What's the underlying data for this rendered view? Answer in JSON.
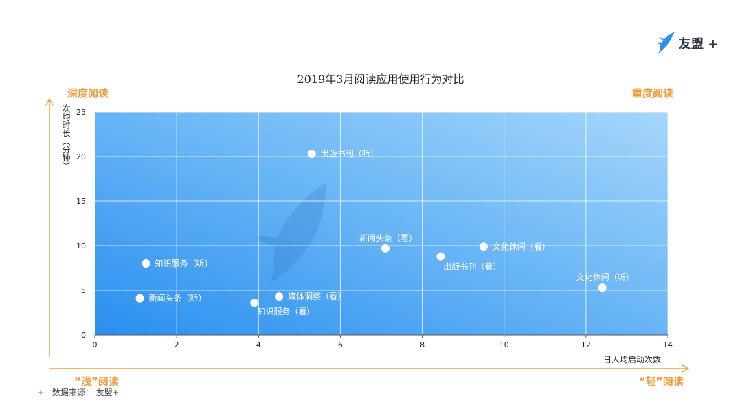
{
  "brand": {
    "name": "友盟",
    "plus": "+",
    "icon": "youmeng-bird-icon",
    "color": "#2d8ef0"
  },
  "title": "2019年3月阅读应用使用行为对比",
  "quadrants": {
    "top_left": "深度阅读",
    "top_right": "重度阅读",
    "bottom_left": "“浅”阅读",
    "bottom_right": "“轻”阅读"
  },
  "source": "数据来源： 友盟+",
  "colors": {
    "accent_orange": "#f39a3b",
    "plot_gradient_start": "#2a8ff0",
    "plot_gradient_end": "#9fd3fa",
    "point": "#ffffff"
  },
  "chart_data": {
    "type": "scatter",
    "title": "2019年3月阅读应用使用行为对比",
    "xlabel": "日人均启动次数",
    "ylabel": "次均时长（分钟）",
    "xlim": [
      0,
      14
    ],
    "ylim": [
      0,
      25
    ],
    "xticks": [
      0,
      2,
      4,
      6,
      8,
      10,
      12,
      14
    ],
    "yticks": [
      0,
      5,
      10,
      15,
      20,
      25
    ],
    "grid": true,
    "points": [
      {
        "label": "出版书刊（听）",
        "x": 5.3,
        "y": 20.3,
        "label_pos": "right"
      },
      {
        "label": "新闻头条（看）",
        "x": 7.1,
        "y": 9.7,
        "label_pos": "above"
      },
      {
        "label": "文化休闲（看）",
        "x": 9.5,
        "y": 9.9,
        "label_pos": "right"
      },
      {
        "label": "出版书刊（看）",
        "x": 8.45,
        "y": 8.8,
        "label_pos": "below"
      },
      {
        "label": "知识服务（听）",
        "x": 1.25,
        "y": 8.0,
        "label_pos": "right"
      },
      {
        "label": "文化休闲（听）",
        "x": 12.4,
        "y": 5.3,
        "label_pos": "above"
      },
      {
        "label": "媒体洞察（看）",
        "x": 4.5,
        "y": 4.3,
        "label_pos": "right"
      },
      {
        "label": "新闻头条（听）",
        "x": 1.1,
        "y": 4.1,
        "label_pos": "right"
      },
      {
        "label": "知识服务（看）",
        "x": 3.9,
        "y": 3.6,
        "label_pos": "below"
      }
    ]
  }
}
